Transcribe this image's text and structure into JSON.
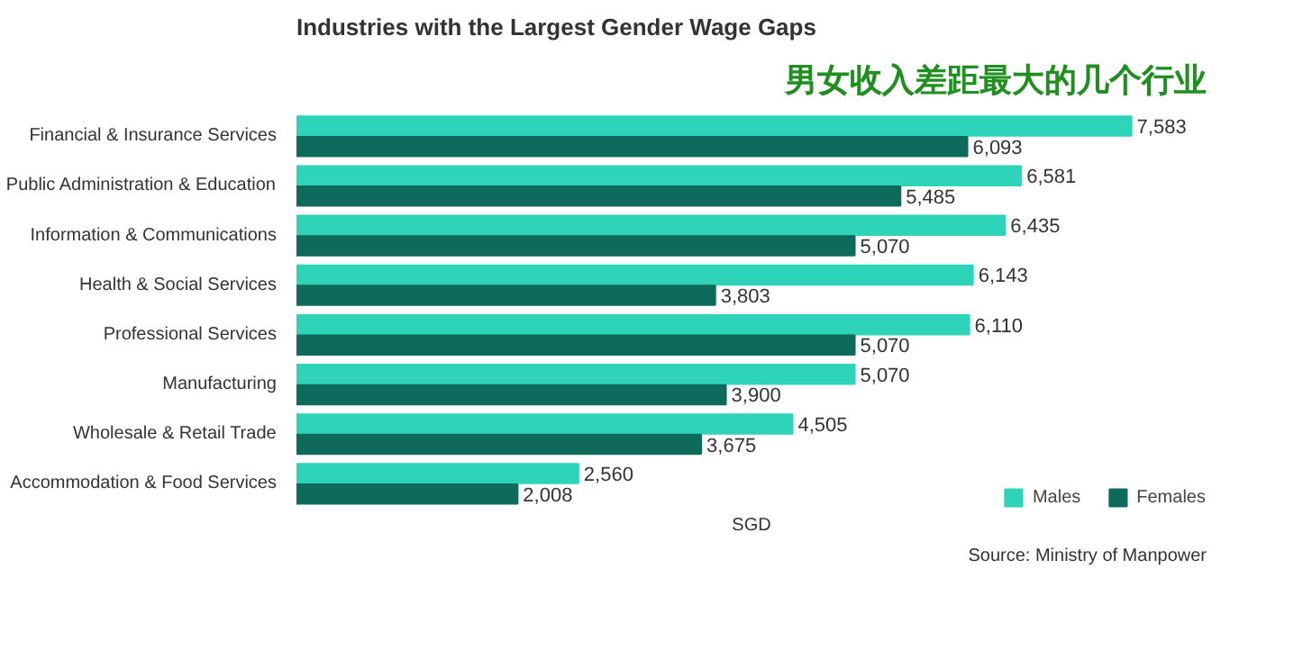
{
  "chart_data": {
    "type": "bar",
    "orientation": "horizontal",
    "title": "Industries with the Largest Gender Wage Gaps",
    "subtitle": "男女收入差距最大的几个行业",
    "categories": [
      "Financial & Insurance Services",
      "Public Administration & Education",
      "Information & Communications",
      "Health & Social Services",
      "Professional Services",
      "Manufacturing",
      "Wholesale & Retail Trade",
      "Accommodation & Food Services"
    ],
    "series": [
      {
        "name": "Males",
        "color": "#2dd4b8",
        "values": [
          7583,
          6581,
          6435,
          6143,
          6110,
          5070,
          4505,
          2560
        ],
        "value_labels": [
          "7,583",
          "6,581",
          "6,435",
          "6,143",
          "6,110",
          "5,070",
          "4,505",
          "2,560"
        ]
      },
      {
        "name": "Females",
        "color": "#0e6b5c",
        "values": [
          6093,
          5485,
          5070,
          3803,
          5070,
          3900,
          3675,
          2008
        ],
        "value_labels": [
          "6,093",
          "5,485",
          "5,070",
          "3,803",
          "5,070",
          "3,900",
          "3,675",
          "2,008"
        ]
      }
    ],
    "xlabel": "SGD",
    "legend": "bottom right",
    "annotations": [
      "Source: Ministry of Manpower"
    ]
  }
}
